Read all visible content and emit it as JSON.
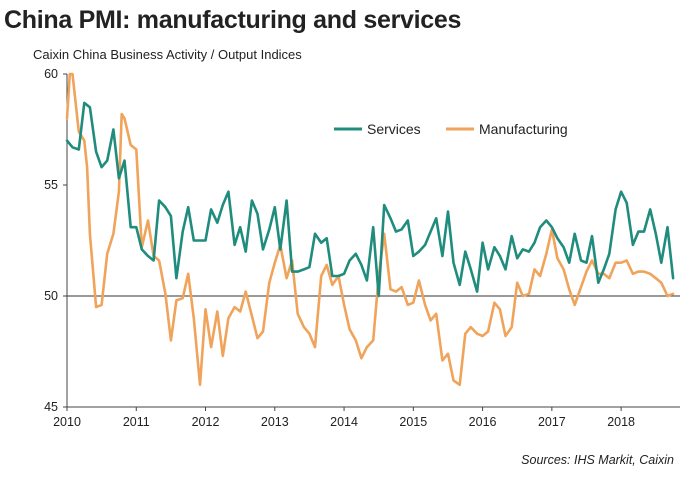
{
  "chart_data": {
    "type": "line",
    "title": "China PMI: manufacturing and services",
    "subtitle": "Caixin China Business Activity / Output Indices",
    "source": "Sources: IHS Markit, Caixin",
    "x_range": [
      2010.0,
      2018.85
    ],
    "ylim": [
      45,
      60
    ],
    "y_ticks": [
      45,
      50,
      55,
      60
    ],
    "x_ticks": [
      2010,
      2011,
      2012,
      2013,
      2014,
      2015,
      2016,
      2017,
      2018
    ],
    "x_tick_labels": [
      "2010",
      "2011",
      "2012",
      "2013",
      "2014",
      "2015",
      "2016",
      "2017",
      "2018"
    ],
    "y_tick_labels": [
      "45",
      "50",
      "55",
      "60"
    ],
    "reference_line": 50,
    "grid": false,
    "legend_placement": "top-right",
    "series": [
      {
        "name": "Services",
        "color": "#1f8c7e",
        "points": [
          [
            2010.0,
            57.0
          ],
          [
            2010.08,
            56.7
          ],
          [
            2010.17,
            56.6
          ],
          [
            2010.25,
            58.7
          ],
          [
            2010.33,
            58.5
          ],
          [
            2010.42,
            56.5
          ],
          [
            2010.5,
            55.8
          ],
          [
            2010.58,
            56.1
          ],
          [
            2010.67,
            57.5
          ],
          [
            2010.75,
            55.3
          ],
          [
            2010.83,
            56.1
          ],
          [
            2010.92,
            53.1
          ],
          [
            2011.0,
            53.1
          ],
          [
            2011.08,
            52.1
          ],
          [
            2011.17,
            51.8
          ],
          [
            2011.25,
            51.6
          ],
          [
            2011.33,
            54.3
          ],
          [
            2011.42,
            54.0
          ],
          [
            2011.5,
            53.6
          ],
          [
            2011.58,
            50.8
          ],
          [
            2011.67,
            52.9
          ],
          [
            2011.75,
            54.0
          ],
          [
            2011.83,
            52.5
          ],
          [
            2011.92,
            52.5
          ],
          [
            2012.0,
            52.5
          ],
          [
            2012.08,
            53.9
          ],
          [
            2012.17,
            53.3
          ],
          [
            2012.25,
            54.1
          ],
          [
            2012.33,
            54.7
          ],
          [
            2012.42,
            52.3
          ],
          [
            2012.5,
            53.1
          ],
          [
            2012.58,
            52.0
          ],
          [
            2012.67,
            54.3
          ],
          [
            2012.75,
            53.7
          ],
          [
            2012.83,
            52.1
          ],
          [
            2012.92,
            53.0
          ],
          [
            2013.0,
            54.0
          ],
          [
            2013.08,
            52.1
          ],
          [
            2013.17,
            54.3
          ],
          [
            2013.25,
            51.1
          ],
          [
            2013.33,
            51.1
          ],
          [
            2013.42,
            51.2
          ],
          [
            2013.5,
            51.3
          ],
          [
            2013.58,
            52.8
          ],
          [
            2013.67,
            52.4
          ],
          [
            2013.75,
            52.6
          ],
          [
            2013.83,
            50.9
          ],
          [
            2013.92,
            50.9
          ],
          [
            2014.0,
            51.0
          ],
          [
            2014.08,
            51.6
          ],
          [
            2014.17,
            51.9
          ],
          [
            2014.25,
            51.4
          ],
          [
            2014.33,
            50.7
          ],
          [
            2014.42,
            53.1
          ],
          [
            2014.5,
            50.0
          ],
          [
            2014.58,
            54.1
          ],
          [
            2014.67,
            53.5
          ],
          [
            2014.75,
            52.9
          ],
          [
            2014.83,
            53.0
          ],
          [
            2014.92,
            53.4
          ],
          [
            2015.0,
            51.8
          ],
          [
            2015.08,
            52.0
          ],
          [
            2015.17,
            52.3
          ],
          [
            2015.25,
            52.9
          ],
          [
            2015.33,
            53.5
          ],
          [
            2015.42,
            51.8
          ],
          [
            2015.5,
            53.8
          ],
          [
            2015.58,
            51.5
          ],
          [
            2015.67,
            50.5
          ],
          [
            2015.75,
            52.0
          ],
          [
            2015.83,
            51.2
          ],
          [
            2015.92,
            50.2
          ],
          [
            2016.0,
            52.4
          ],
          [
            2016.08,
            51.2
          ],
          [
            2016.17,
            52.2
          ],
          [
            2016.25,
            51.8
          ],
          [
            2016.33,
            51.2
          ],
          [
            2016.42,
            52.7
          ],
          [
            2016.5,
            51.7
          ],
          [
            2016.58,
            52.1
          ],
          [
            2016.67,
            52.0
          ],
          [
            2016.75,
            52.4
          ],
          [
            2016.83,
            53.1
          ],
          [
            2016.92,
            53.4
          ],
          [
            2017.0,
            53.1
          ],
          [
            2017.08,
            52.6
          ],
          [
            2017.17,
            52.2
          ],
          [
            2017.25,
            51.5
          ],
          [
            2017.33,
            52.8
          ],
          [
            2017.42,
            51.6
          ],
          [
            2017.5,
            51.5
          ],
          [
            2017.58,
            52.7
          ],
          [
            2017.67,
            50.6
          ],
          [
            2017.75,
            51.2
          ],
          [
            2017.83,
            51.9
          ],
          [
            2017.92,
            53.9
          ],
          [
            2018.0,
            54.7
          ],
          [
            2018.08,
            54.2
          ],
          [
            2018.17,
            52.3
          ],
          [
            2018.25,
            52.9
          ],
          [
            2018.33,
            52.9
          ],
          [
            2018.42,
            53.9
          ],
          [
            2018.5,
            52.8
          ],
          [
            2018.58,
            51.5
          ],
          [
            2018.67,
            53.1
          ],
          [
            2018.75,
            50.8
          ]
        ]
      },
      {
        "name": "Manufacturing",
        "color": "#f0a35a",
        "points": [
          [
            2010.0,
            58.0
          ],
          [
            2010.04,
            60.0
          ],
          [
            2010.08,
            60.0
          ],
          [
            2010.17,
            57.4
          ],
          [
            2010.25,
            57.0
          ],
          [
            2010.29,
            55.8
          ],
          [
            2010.33,
            52.8
          ],
          [
            2010.38,
            51.0
          ],
          [
            2010.42,
            49.5
          ],
          [
            2010.5,
            49.6
          ],
          [
            2010.58,
            51.9
          ],
          [
            2010.67,
            52.8
          ],
          [
            2010.75,
            54.7
          ],
          [
            2010.79,
            58.2
          ],
          [
            2010.83,
            58.0
          ],
          [
            2010.92,
            56.8
          ],
          [
            2011.0,
            56.6
          ],
          [
            2011.08,
            52.2
          ],
          [
            2011.17,
            53.4
          ],
          [
            2011.25,
            51.8
          ],
          [
            2011.33,
            51.6
          ],
          [
            2011.42,
            50.1
          ],
          [
            2011.5,
            48.0
          ],
          [
            2011.58,
            49.8
          ],
          [
            2011.67,
            49.9
          ],
          [
            2011.75,
            51.0
          ],
          [
            2011.83,
            49.0
          ],
          [
            2011.92,
            46.0
          ],
          [
            2012.0,
            49.4
          ],
          [
            2012.08,
            47.7
          ],
          [
            2012.17,
            49.3
          ],
          [
            2012.25,
            47.3
          ],
          [
            2012.33,
            49.0
          ],
          [
            2012.42,
            49.5
          ],
          [
            2012.5,
            49.3
          ],
          [
            2012.58,
            50.2
          ],
          [
            2012.67,
            49.1
          ],
          [
            2012.75,
            48.1
          ],
          [
            2012.83,
            48.4
          ],
          [
            2012.92,
            50.6
          ],
          [
            2013.0,
            51.5
          ],
          [
            2013.08,
            52.3
          ],
          [
            2013.17,
            50.8
          ],
          [
            2013.25,
            51.6
          ],
          [
            2013.33,
            49.2
          ],
          [
            2013.42,
            48.6
          ],
          [
            2013.5,
            48.3
          ],
          [
            2013.58,
            47.7
          ],
          [
            2013.67,
            50.9
          ],
          [
            2013.75,
            51.4
          ],
          [
            2013.83,
            50.5
          ],
          [
            2013.92,
            50.9
          ],
          [
            2014.0,
            49.6
          ],
          [
            2014.08,
            48.5
          ],
          [
            2014.17,
            48.0
          ],
          [
            2014.25,
            47.2
          ],
          [
            2014.33,
            47.7
          ],
          [
            2014.42,
            48.0
          ],
          [
            2014.5,
            50.9
          ],
          [
            2014.58,
            52.8
          ],
          [
            2014.67,
            50.3
          ],
          [
            2014.75,
            50.2
          ],
          [
            2014.83,
            50.4
          ],
          [
            2014.92,
            49.6
          ],
          [
            2015.0,
            49.7
          ],
          [
            2015.08,
            50.7
          ],
          [
            2015.17,
            49.6
          ],
          [
            2015.25,
            48.9
          ],
          [
            2015.33,
            49.2
          ],
          [
            2015.42,
            47.1
          ],
          [
            2015.5,
            47.4
          ],
          [
            2015.58,
            46.2
          ],
          [
            2015.67,
            46.0
          ],
          [
            2015.75,
            48.3
          ],
          [
            2015.83,
            48.6
          ],
          [
            2015.92,
            48.3
          ],
          [
            2016.0,
            48.2
          ],
          [
            2016.08,
            48.4
          ],
          [
            2016.17,
            49.7
          ],
          [
            2016.25,
            49.4
          ],
          [
            2016.33,
            48.2
          ],
          [
            2016.42,
            48.6
          ],
          [
            2016.5,
            50.6
          ],
          [
            2016.58,
            50.0
          ],
          [
            2016.67,
            50.1
          ],
          [
            2016.75,
            51.2
          ],
          [
            2016.83,
            50.9
          ],
          [
            2016.92,
            51.9
          ],
          [
            2017.0,
            53.0
          ],
          [
            2017.08,
            51.7
          ],
          [
            2017.17,
            51.2
          ],
          [
            2017.25,
            50.3
          ],
          [
            2017.33,
            49.6
          ],
          [
            2017.42,
            50.4
          ],
          [
            2017.5,
            51.1
          ],
          [
            2017.58,
            51.6
          ],
          [
            2017.67,
            51.0
          ],
          [
            2017.75,
            51.0
          ],
          [
            2017.83,
            50.8
          ],
          [
            2017.92,
            51.5
          ],
          [
            2018.0,
            51.5
          ],
          [
            2018.08,
            51.6
          ],
          [
            2018.17,
            51.0
          ],
          [
            2018.25,
            51.1
          ],
          [
            2018.33,
            51.1
          ],
          [
            2018.42,
            51.0
          ],
          [
            2018.5,
            50.8
          ],
          [
            2018.58,
            50.6
          ],
          [
            2018.67,
            50.0
          ],
          [
            2018.75,
            50.1
          ]
        ]
      }
    ]
  }
}
